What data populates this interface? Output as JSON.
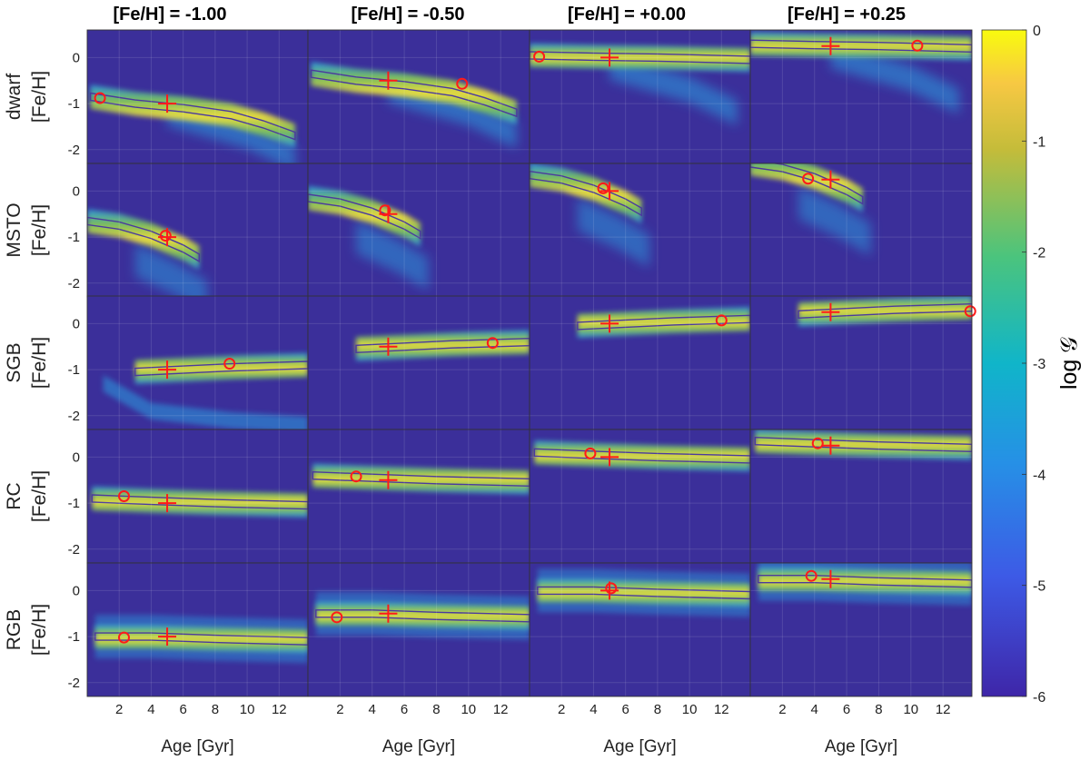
{
  "chart_data": {
    "type": "heatmap",
    "column_titles": [
      "[Fe/H] = -1.00",
      "[Fe/H] = -0.50",
      "[Fe/H] = +0.00",
      "[Fe/H] = +0.25"
    ],
    "row_labels": [
      "dwarf",
      "MSTO",
      "SGB",
      "RC",
      "RGB"
    ],
    "xlabel": "Age [Gyr]",
    "ylabel": "[Fe/H]",
    "colorbar_label": "log 𝒢",
    "xlim": [
      0,
      13.8
    ],
    "ylim": [
      -2.3,
      0.6
    ],
    "x_ticks": [
      "2",
      "4",
      "6",
      "8",
      "10",
      "12"
    ],
    "y_ticks": [
      "0",
      "-1",
      "-2"
    ],
    "colorbar_ticks": [
      "0",
      "-1",
      "-2",
      "-3",
      "-4",
      "-5",
      "-6"
    ],
    "colorbar_range": [
      -6,
      0
    ],
    "grid": true,
    "colors": {
      "background": "#3b2f9a",
      "marker": "#ff1a1a",
      "contour": "#4b3a9e"
    },
    "panels": [
      [
        {
          "true_age": 5,
          "true_feh": -1.0,
          "est_age": 0.8,
          "est_feh": -0.88,
          "shape": "banana"
        },
        {
          "true_age": 5,
          "true_feh": -1.0,
          "est_age": 4.9,
          "est_feh": -0.97,
          "shape": "msto"
        },
        {
          "true_age": 5,
          "true_feh": -1.0,
          "est_age": 8.9,
          "est_feh": -0.87,
          "shape": "sgb"
        },
        {
          "true_age": 5,
          "true_feh": -1.0,
          "est_age": 2.3,
          "est_feh": -0.85,
          "shape": "rc"
        },
        {
          "true_age": 5,
          "true_feh": -1.0,
          "est_age": 2.3,
          "est_feh": -1.02,
          "shape": "rgb"
        }
      ],
      [
        {
          "true_age": 5,
          "true_feh": -0.5,
          "est_age": 9.6,
          "est_feh": -0.57,
          "shape": "banana"
        },
        {
          "true_age": 5,
          "true_feh": -0.5,
          "est_age": 4.8,
          "est_feh": -0.42,
          "shape": "msto"
        },
        {
          "true_age": 5,
          "true_feh": -0.5,
          "est_age": 11.5,
          "est_feh": -0.42,
          "shape": "sgb"
        },
        {
          "true_age": 5,
          "true_feh": -0.5,
          "est_age": 3.0,
          "est_feh": -0.42,
          "shape": "rc"
        },
        {
          "true_age": 5,
          "true_feh": -0.5,
          "est_age": 1.8,
          "est_feh": -0.58,
          "shape": "rgb"
        }
      ],
      [
        {
          "true_age": 5,
          "true_feh": 0.0,
          "est_age": 0.6,
          "est_feh": 0.02,
          "shape": "banana"
        },
        {
          "true_age": 5,
          "true_feh": 0.0,
          "est_age": 4.6,
          "est_feh": 0.06,
          "shape": "msto"
        },
        {
          "true_age": 5,
          "true_feh": 0.0,
          "est_age": 12.0,
          "est_feh": 0.07,
          "shape": "sgb"
        },
        {
          "true_age": 5,
          "true_feh": 0.0,
          "est_age": 3.8,
          "est_feh": 0.08,
          "shape": "rc"
        },
        {
          "true_age": 5,
          "true_feh": 0.0,
          "est_age": 5.1,
          "est_feh": 0.05,
          "shape": "rgb"
        }
      ],
      [
        {
          "true_age": 5,
          "true_feh": 0.25,
          "est_age": 10.4,
          "est_feh": 0.26,
          "shape": "banana"
        },
        {
          "true_age": 5,
          "true_feh": 0.25,
          "est_age": 3.6,
          "est_feh": 0.27,
          "shape": "msto"
        },
        {
          "true_age": 5,
          "true_feh": 0.25,
          "est_age": 13.7,
          "est_feh": 0.27,
          "shape": "sgb"
        },
        {
          "true_age": 5,
          "true_feh": 0.25,
          "est_age": 4.2,
          "est_feh": 0.3,
          "shape": "rc"
        },
        {
          "true_age": 5,
          "true_feh": 0.25,
          "est_age": 3.8,
          "est_feh": 0.32,
          "shape": "rgb"
        }
      ]
    ]
  }
}
